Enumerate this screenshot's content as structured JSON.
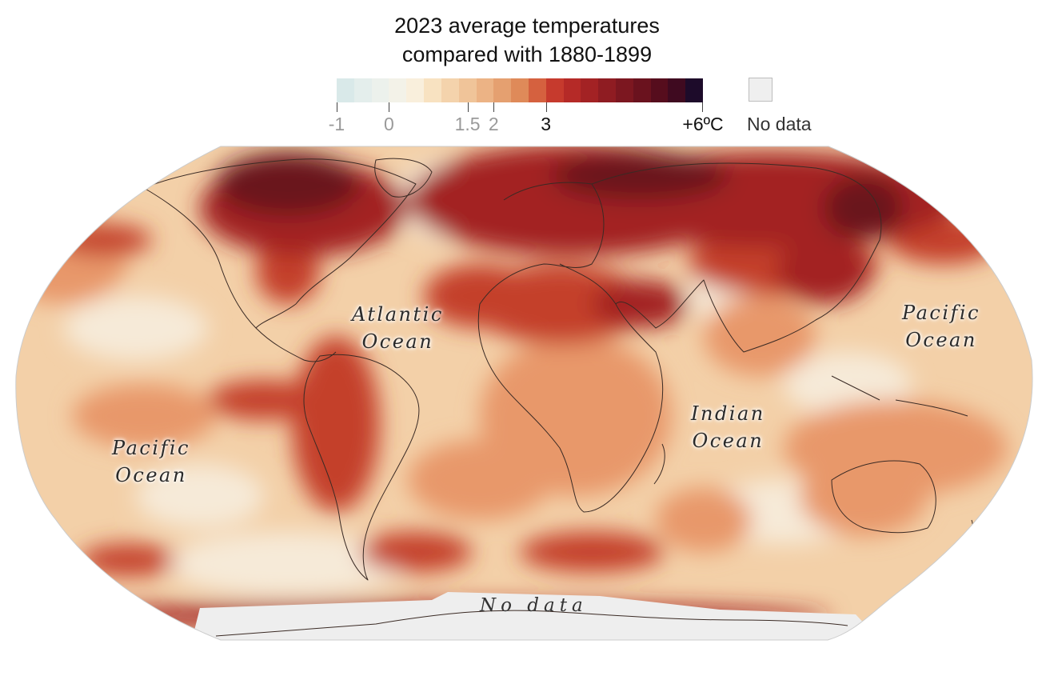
{
  "title": {
    "line1": "2023 average temperatures",
    "line2": "compared with 1880-1899"
  },
  "legend": {
    "min": -1,
    "max": 6,
    "ticks": [
      {
        "value": -1,
        "label": "-1",
        "emphasis": false
      },
      {
        "value": 0,
        "label": "0",
        "emphasis": false
      },
      {
        "value": 1.5,
        "label": "1.5",
        "emphasis": false
      },
      {
        "value": 2,
        "label": "2",
        "emphasis": false
      },
      {
        "value": 3,
        "label": "3",
        "emphasis": true
      },
      {
        "value": 6,
        "label": "+6ºC",
        "emphasis": true
      }
    ],
    "colors": [
      "#d9e9e9",
      "#e4eeec",
      "#ecf1ec",
      "#f3f2e8",
      "#f9efdc",
      "#f8e2c1",
      "#f4d3ac",
      "#f0c499",
      "#ecb385",
      "#e5a070",
      "#df8a59",
      "#d5613f",
      "#c63a2d",
      "#b52a27",
      "#a32224",
      "#8f1c22",
      "#7c1720",
      "#6a121e",
      "#560d1d",
      "#3f0a20",
      "#1d0b2a"
    ],
    "no_data_label": "No data"
  },
  "map": {
    "labels": {
      "atlantic": [
        "Atlantic",
        "Ocean"
      ],
      "pacific_east": [
        "Pacific",
        "Ocean"
      ],
      "pacific_west": [
        "Pacific",
        "Ocean"
      ],
      "indian": [
        "Indian",
        "Ocean"
      ],
      "antarctica": "No data"
    },
    "colors": {
      "nodata": "#eeeeee",
      "ocean_base": "#f3d0a8",
      "warm": "#e8986a",
      "hot": "#c4402c",
      "very_hot": "#a32224",
      "extreme": "#6a121e",
      "cool": "#f6ead8",
      "coast": "#3a2a24"
    }
  }
}
